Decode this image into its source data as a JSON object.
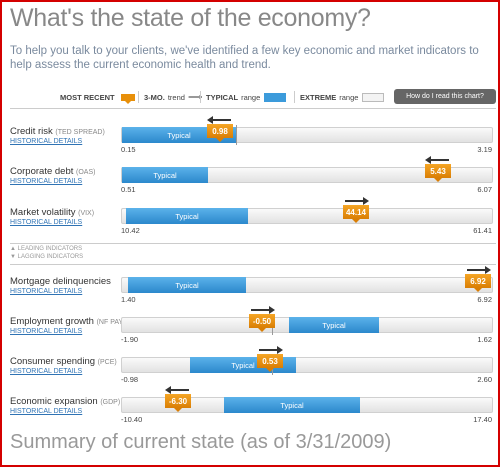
{
  "title": "What's the state of the economy?",
  "intro": "To help you talk to your clients, we've identified a few key economic and market indicators to help assess the current economic health and trend.",
  "legend": {
    "most_recent": "MOST RECENT",
    "trend_bold": "3-MO.",
    "trend": "trend",
    "typical_bold": "TYPICAL",
    "typical": "range",
    "extreme_bold": "EXTREME",
    "extreme": "range",
    "how_button": "How do I read this chart?"
  },
  "colors": {
    "accent_orange": "#e8900a",
    "typical_blue": "#3c9bdb",
    "frame_red": "#d40000",
    "link_blue": "#2f73b4"
  },
  "historical_label": "HISTORICAL DETAILS",
  "typical_label": "Typical",
  "section_tags": {
    "leading": "LEADING INDICATORS",
    "lagging": "LAGGING INDICATORS"
  },
  "indicators": [
    {
      "name": "Credit risk",
      "abbr": "(TED SPREAD)",
      "min": "0.15",
      "max": "3.19",
      "value": "0.98",
      "trend": "left"
    },
    {
      "name": "Corporate debt",
      "abbr": "(OAS)",
      "min": "0.51",
      "max": "6.07",
      "value": "5.43",
      "trend": "left"
    },
    {
      "name": "Market volatility",
      "abbr": "(VIX)",
      "min": "10.42",
      "max": "61.41",
      "value": "44.14",
      "trend": "right"
    },
    {
      "name": "Mortgage delinquencies",
      "abbr": "",
      "min": "1.40",
      "max": "6.92",
      "value": "6.92",
      "trend": "right"
    },
    {
      "name": "Employment growth",
      "abbr": "(NF PAY)",
      "min": "-1.90",
      "max": "1.62",
      "value": "-0.50",
      "trend": "right"
    },
    {
      "name": "Consumer spending",
      "abbr": "(PCE)",
      "min": "-0.98",
      "max": "2.60",
      "value": "0.53",
      "trend": "right"
    },
    {
      "name": "Economic expansion",
      "abbr": "(GDP)",
      "min": "-10.40",
      "max": "17.40",
      "value": "-6.30",
      "trend": "left"
    }
  ],
  "summary": "Summary of current state (as of 3/31/2009)"
}
